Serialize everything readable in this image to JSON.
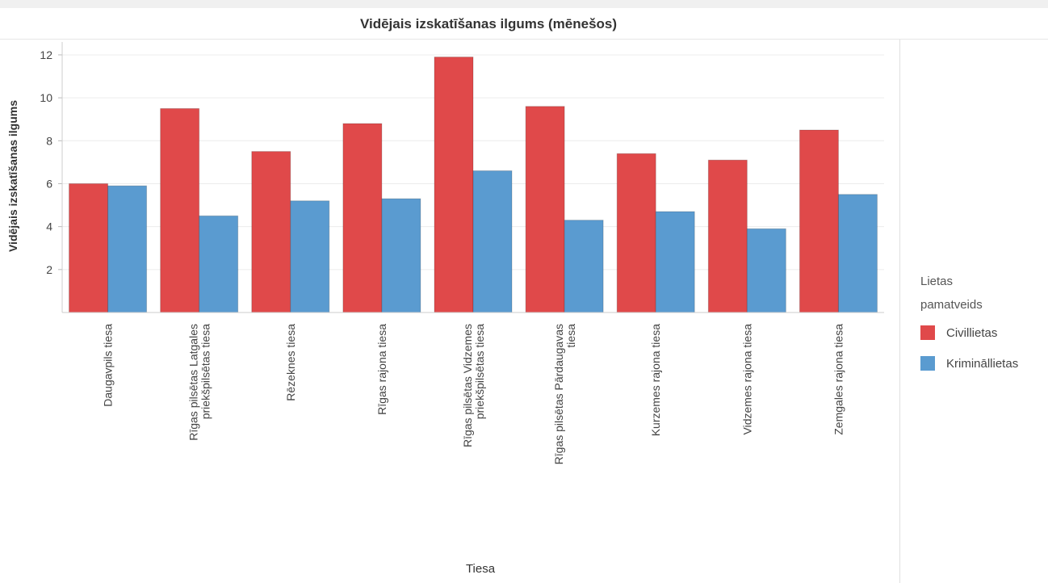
{
  "chart_data": {
    "type": "bar",
    "title": "Vidējais izskatīšanas ilgums (mēnešos)",
    "xlabel": "Tiesa",
    "ylabel": "Vidējais izskatīšanas ilgums",
    "ylim": [
      0,
      12.6
    ],
    "yticks": [
      2,
      4,
      6,
      8,
      10,
      12
    ],
    "grid": true,
    "legend_position": "right",
    "legend_title": "Lietas pamatveids",
    "categories": [
      "Daugavpils tiesa",
      "Rīgas pilsētas Latgales priekšpilsētas tiesa",
      "Rēzeknes tiesa",
      "Rīgas rajona tiesa",
      "Rīgas pilsētas Vidzemes priekšpilsētas tiesa",
      "Rīgas pilsētas Pārdaugavas tiesa",
      "Kurzemes rajona tiesa",
      "Vidzemes rajona tiesa",
      "Zemgales rajona tiesa"
    ],
    "series": [
      {
        "name": "Civillietas",
        "color": "#e0494a",
        "values": [
          6.0,
          9.5,
          7.5,
          8.8,
          11.9,
          9.6,
          7.4,
          7.1,
          8.5
        ]
      },
      {
        "name": "Krimināllietas",
        "color": "#5a9bd0",
        "values": [
          5.9,
          4.5,
          5.2,
          5.3,
          6.6,
          4.3,
          4.7,
          3.9,
          5.5
        ]
      }
    ]
  }
}
